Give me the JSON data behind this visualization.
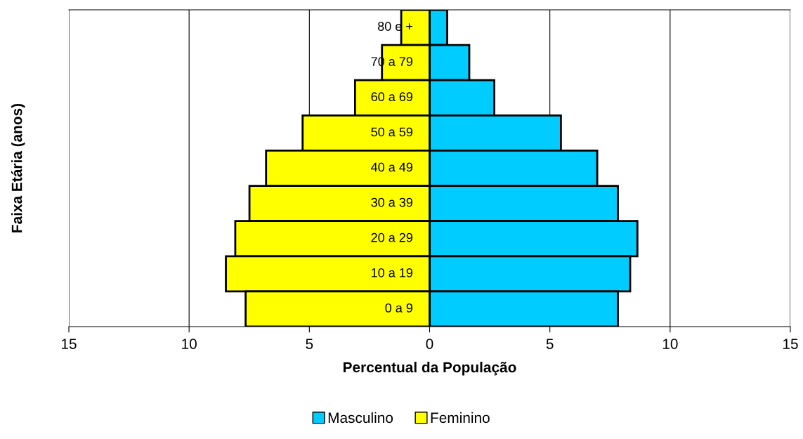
{
  "chart_data": {
    "type": "bar",
    "orientation": "horizontal",
    "xlabel": "Percentual da População",
    "ylabel": "Faixa Etária (anos)",
    "categories": [
      "80 e +",
      "70 a 79",
      "60 a 69",
      "50 a 59",
      "40 a 49",
      "30 a 39",
      "20 a 29",
      "10 a 19",
      "0 a 9"
    ],
    "series": [
      {
        "name": "Masculino",
        "color": "#00ccff",
        "values": [
          0.73,
          1.65,
          2.69,
          5.46,
          6.97,
          7.83,
          8.64,
          8.34,
          7.83
        ]
      },
      {
        "name": "Feminino",
        "color": "#ffff00",
        "values": [
          -1.18,
          -1.98,
          -3.1,
          -5.28,
          -6.8,
          -7.49,
          -8.08,
          -8.47,
          -7.65
        ]
      }
    ],
    "xlim": [
      -15,
      15
    ],
    "xticks": [
      {
        "value": -15,
        "label": "15"
      },
      {
        "value": -10,
        "label": "10"
      },
      {
        "value": -5,
        "label": "5"
      },
      0,
      5,
      10,
      15
    ],
    "stacked": true,
    "grid": "x",
    "legend": "bottom"
  }
}
